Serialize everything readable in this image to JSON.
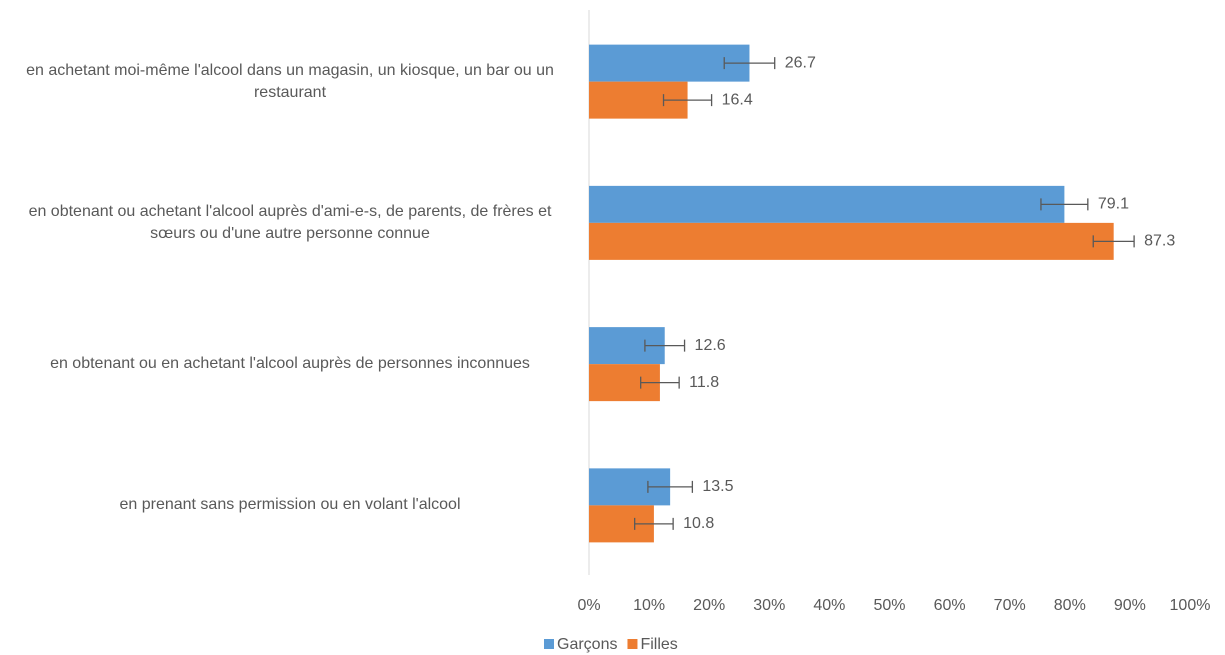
{
  "chart_data": {
    "type": "hbar",
    "categories": [
      "en achetant moi-même l'alcool dans un magasin, un kiosque, un bar ou un restaurant",
      "en obtenant ou achetant l'alcool auprès d'ami-e-s, de parents, de frères et sœurs ou d'une autre personne connue",
      "en obtenant ou en achetant l'alcool auprès de personnes inconnues",
      "en prenant sans permission ou en volant l'alcool"
    ],
    "series": [
      {
        "name": "Garçons",
        "color": "#5b9bd5",
        "values": [
          26.7,
          79.1,
          12.6,
          13.5
        ],
        "errors": [
          4.2,
          3.9,
          3.3,
          3.7
        ]
      },
      {
        "name": "Filles",
        "color": "#ed7d31",
        "values": [
          16.4,
          87.3,
          11.8,
          10.8
        ],
        "errors": [
          4.0,
          3.4,
          3.2,
          3.2
        ]
      }
    ],
    "xlim": [
      0,
      100
    ],
    "xticks": [
      {
        "value": 0,
        "label": "0%"
      },
      {
        "value": 10,
        "label": "10%"
      },
      {
        "value": 20,
        "label": "20%"
      },
      {
        "value": 30,
        "label": "30%"
      },
      {
        "value": 40,
        "label": "40%"
      },
      {
        "value": 50,
        "label": "50%"
      },
      {
        "value": 60,
        "label": "60%"
      },
      {
        "value": 70,
        "label": "70%"
      },
      {
        "value": 80,
        "label": "80%"
      },
      {
        "value": 90,
        "label": "90%"
      },
      {
        "value": 100,
        "label": "100%"
      }
    ],
    "legend": "bottom"
  }
}
